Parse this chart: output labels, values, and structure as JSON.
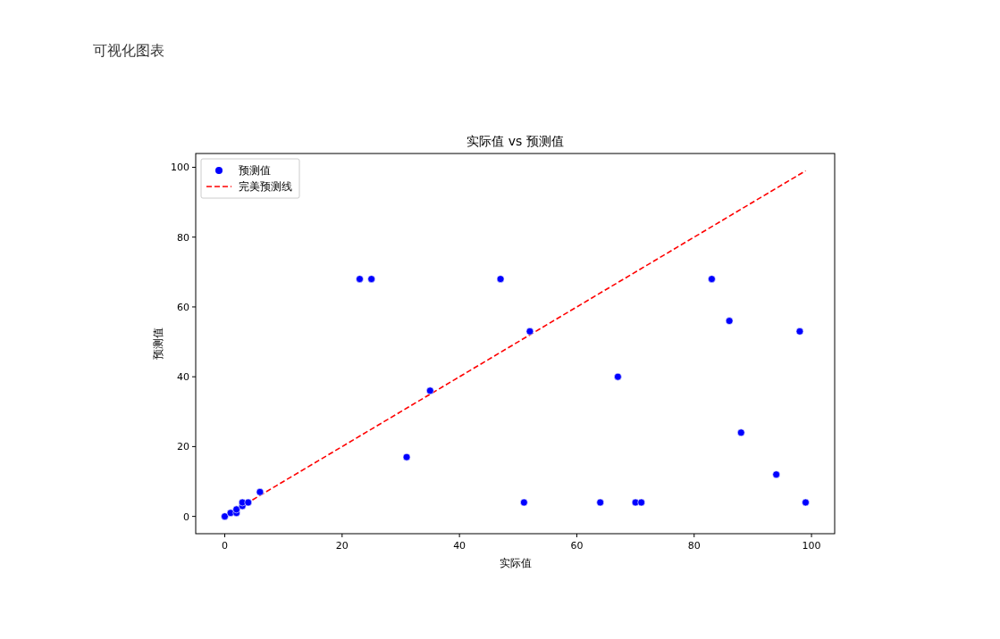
{
  "chart_data": {
    "type": "scatter",
    "title": "实际值 vs 预测值",
    "xlabel": "实际值",
    "ylabel": "预测值",
    "annotations": [
      "可视化图表"
    ],
    "xlim": [
      -4.95,
      103.95
    ],
    "ylim": [
      -4.95,
      103.95
    ],
    "xticks": [
      0,
      20,
      40,
      60,
      80,
      100
    ],
    "yticks": [
      0,
      20,
      40,
      60,
      80,
      100
    ],
    "grid": false,
    "legend": "top left",
    "series": [
      {
        "name": "预测值",
        "marker": "circle",
        "color": "#0000ff",
        "x": [
          0,
          1,
          2,
          2,
          3,
          3,
          4,
          6,
          23,
          25,
          31,
          35,
          47,
          51,
          52,
          64,
          67,
          70,
          71,
          83,
          86,
          88,
          94,
          98,
          99
        ],
        "values": [
          0,
          1,
          1,
          2,
          3,
          4,
          4,
          7,
          68,
          68,
          17,
          36,
          68,
          4,
          53,
          4,
          40,
          4,
          4,
          68,
          56,
          24,
          12,
          53,
          4
        ]
      },
      {
        "name": "完美预测线",
        "type": "line",
        "marker": "none",
        "line_style": "dashed",
        "color": "#ff0000",
        "x": [
          0,
          99
        ],
        "values": [
          0,
          99
        ]
      }
    ]
  }
}
